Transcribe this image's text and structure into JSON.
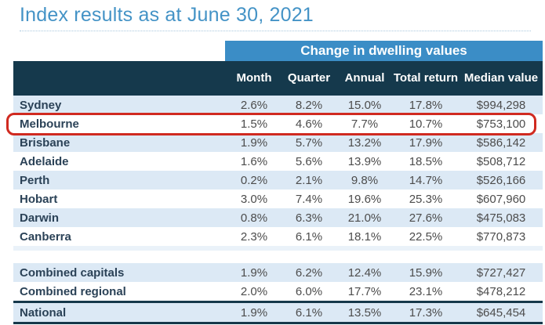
{
  "title": "Index results as at June 30, 2021",
  "chart_data": {
    "type": "table",
    "title": "Index results as at June 30, 2021",
    "group_header": "Change in dwelling values",
    "group_header_spans": [
      "Month",
      "Quarter",
      "Annual"
    ],
    "columns": [
      "Month",
      "Quarter",
      "Annual",
      "Total return",
      "Median value"
    ],
    "rows": [
      {
        "name": "Sydney",
        "values": [
          "2.6%",
          "8.2%",
          "15.0%",
          "17.8%",
          "$994,298"
        ]
      },
      {
        "name": "Melbourne",
        "values": [
          "1.5%",
          "4.6%",
          "7.7%",
          "10.7%",
          "$753,100"
        ]
      },
      {
        "name": "Brisbane",
        "values": [
          "1.9%",
          "5.7%",
          "13.2%",
          "17.9%",
          "$586,142"
        ]
      },
      {
        "name": "Adelaide",
        "values": [
          "1.6%",
          "5.6%",
          "13.9%",
          "18.5%",
          "$508,712"
        ]
      },
      {
        "name": "Perth",
        "values": [
          "0.2%",
          "2.1%",
          "9.8%",
          "14.7%",
          "$526,166"
        ]
      },
      {
        "name": "Hobart",
        "values": [
          "3.0%",
          "7.4%",
          "19.6%",
          "25.3%",
          "$607,960"
        ]
      },
      {
        "name": "Darwin",
        "values": [
          "0.8%",
          "6.3%",
          "21.0%",
          "27.6%",
          "$475,083"
        ]
      },
      {
        "name": "Canberra",
        "values": [
          "2.3%",
          "6.1%",
          "18.1%",
          "22.5%",
          "$770,873"
        ]
      },
      {
        "name": "Combined capitals",
        "values": [
          "1.9%",
          "6.2%",
          "12.4%",
          "15.9%",
          "$727,427"
        ]
      },
      {
        "name": "Combined regional",
        "values": [
          "2.0%",
          "6.0%",
          "17.7%",
          "23.1%",
          "$478,212"
        ]
      },
      {
        "name": "National",
        "values": [
          "1.9%",
          "6.1%",
          "13.5%",
          "17.3%",
          "$645,454"
        ]
      }
    ],
    "highlighted_row": "Melbourne",
    "colors": {
      "title_text": "#4493c6",
      "band_background": "#3b8dc6",
      "header_background": "#15394c",
      "stripe_background": "#dce9f5",
      "highlight_border": "#d02a20",
      "rule_border": "#16384a"
    }
  }
}
